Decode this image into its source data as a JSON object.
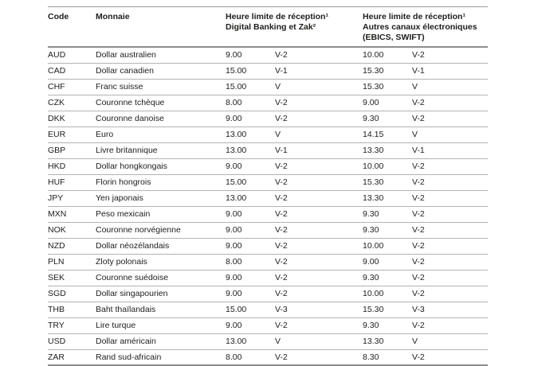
{
  "table": {
    "header": {
      "code": "Code",
      "currency": "Monnaie",
      "digital_line1": "Heure limite de réception¹",
      "digital_line2": "Digital Banking et Zak²",
      "other_line1": "Heure limite de réception¹",
      "other_line2": "Autres canaux électroniques",
      "other_line3": "(EBICS, SWIFT)"
    },
    "rows": [
      {
        "code": "AUD",
        "currency": "Dollar australien",
        "digital_time": "9.00",
        "digital_valuta": "V-2",
        "other_time": "10.00",
        "other_valuta": "V-2"
      },
      {
        "code": "CAD",
        "currency": "Dollar canadien",
        "digital_time": "15.00",
        "digital_valuta": "V-1",
        "other_time": "15.30",
        "other_valuta": "V-1"
      },
      {
        "code": "CHF",
        "currency": "Franc suisse",
        "digital_time": "15.00",
        "digital_valuta": "V",
        "other_time": "15.30",
        "other_valuta": "V"
      },
      {
        "code": "CZK",
        "currency": "Couronne tchèque",
        "digital_time": "8.00",
        "digital_valuta": "V-2",
        "other_time": "9.00",
        "other_valuta": "V-2"
      },
      {
        "code": "DKK",
        "currency": "Couronne danoise",
        "digital_time": "9.00",
        "digital_valuta": "V-2",
        "other_time": "9.30",
        "other_valuta": "V-2"
      },
      {
        "code": "EUR",
        "currency": "Euro",
        "digital_time": "13.00",
        "digital_valuta": "V",
        "other_time": "14.15",
        "other_valuta": "V"
      },
      {
        "code": "GBP",
        "currency": "Livre britannique",
        "digital_time": "13.00",
        "digital_valuta": "V-1",
        "other_time": "13.30",
        "other_valuta": "V-1"
      },
      {
        "code": "HKD",
        "currency": "Dollar hongkongais",
        "digital_time": "9.00",
        "digital_valuta": "V-2",
        "other_time": "10.00",
        "other_valuta": "V-2"
      },
      {
        "code": "HUF",
        "currency": "Florin hongrois",
        "digital_time": "15.00",
        "digital_valuta": "V-2",
        "other_time": "15.30",
        "other_valuta": "V-2"
      },
      {
        "code": "JPY",
        "currency": "Yen japonais",
        "digital_time": "13.00",
        "digital_valuta": "V-2",
        "other_time": "13.30",
        "other_valuta": "V-2"
      },
      {
        "code": "MXN",
        "currency": "Peso mexicain",
        "digital_time": "9.00",
        "digital_valuta": "V-2",
        "other_time": "9.30",
        "other_valuta": "V-2"
      },
      {
        "code": "NOK",
        "currency": "Couronne norvégienne",
        "digital_time": "9.00",
        "digital_valuta": "V-2",
        "other_time": "9.30",
        "other_valuta": "V-2"
      },
      {
        "code": "NZD",
        "currency": "Dollar néozélandais",
        "digital_time": "9.00",
        "digital_valuta": "V-2",
        "other_time": "10.00",
        "other_valuta": "V-2"
      },
      {
        "code": "PLN",
        "currency": "Zloty polonais",
        "digital_time": "8.00",
        "digital_valuta": "V-2",
        "other_time": "9.00",
        "other_valuta": "V-2"
      },
      {
        "code": "SEK",
        "currency": "Couronne suédoise",
        "digital_time": "9.00",
        "digital_valuta": "V-2",
        "other_time": "9.30",
        "other_valuta": "V-2"
      },
      {
        "code": "SGD",
        "currency": "Dollar singapourien",
        "digital_time": "9.00",
        "digital_valuta": "V-2",
        "other_time": "10.00",
        "other_valuta": "V-2"
      },
      {
        "code": "THB",
        "currency": "Baht thaïlandais",
        "digital_time": "15.00",
        "digital_valuta": "V-3",
        "other_time": "15.30",
        "other_valuta": "V-3"
      },
      {
        "code": "TRY",
        "currency": "Lire turque",
        "digital_time": "9.00",
        "digital_valuta": "V-2",
        "other_time": "9.30",
        "other_valuta": "V-2"
      },
      {
        "code": "USD",
        "currency": "Dollar américain",
        "digital_time": "13.00",
        "digital_valuta": "V",
        "other_time": "13.30",
        "other_valuta": "V"
      },
      {
        "code": "ZAR",
        "currency": "Rand sud-africain",
        "digital_time": "8.00",
        "digital_valuta": "V-2",
        "other_time": "8.30",
        "other_valuta": "V-2"
      }
    ]
  }
}
